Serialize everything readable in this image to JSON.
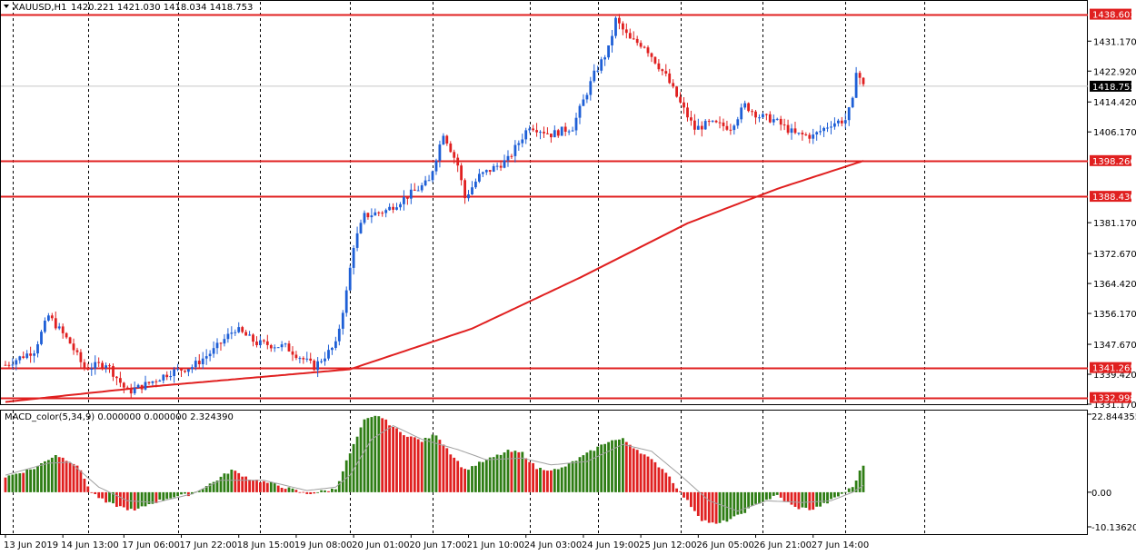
{
  "window": {
    "symbol_label": "XAUUSD,H1",
    "ohlc_label": "1420.221 1421.030 1418.034 1418.753"
  },
  "colors": {
    "bull": "#1e5fd6",
    "bear": "#e02020",
    "level": "#e02020",
    "ma": "#e02020",
    "hist_pos": "#2e7d14",
    "hist_neg": "#e02020",
    "signal": "#a0a0a0",
    "grid": "#000000",
    "badge_bg": "#e02020",
    "current_badge_bg": "#000000"
  },
  "chart_data": [
    {
      "type": "candlestick",
      "title": "XAUUSD,H1",
      "bars": 240,
      "ylim": [
        1331.17,
        1442.0
      ],
      "y_ticks": [
        "1431.170",
        "1422.920",
        "1414.420",
        "1406.170",
        "1381.170",
        "1372.670",
        "1364.420",
        "1356.170",
        "1347.670",
        "1339.420",
        "1331.170"
      ],
      "x_tick_labels": [
        "13 Jun 2019",
        "14 Jun 13:00",
        "17 Jun 06:00",
        "17 Jun 22:00",
        "18 Jun 15:00",
        "19 Jun 08:00",
        "20 Jun 01:00",
        "20 Jun 17:00",
        "21 Jun 10:00",
        "24 Jun 03:00",
        "24 Jun 19:00",
        "25 Jun 12:00",
        "26 Jun 05:00",
        "26 Jun 21:00",
        "27 Jun 14:00"
      ],
      "close_path": [
        [
          0,
          1342.0
        ],
        [
          8,
          1346.0
        ],
        [
          12,
          1355.5
        ],
        [
          18,
          1348.0
        ],
        [
          22,
          1341.0
        ],
        [
          28,
          1342.5
        ],
        [
          34,
          1334.5
        ],
        [
          40,
          1337.0
        ],
        [
          46,
          1340.0
        ],
        [
          52,
          1341.5
        ],
        [
          58,
          1346.0
        ],
        [
          64,
          1352.0
        ],
        [
          70,
          1348.0
        ],
        [
          78,
          1347.0
        ],
        [
          86,
          1341.5
        ],
        [
          92,
          1347.5
        ],
        [
          95,
          1362.0
        ],
        [
          97,
          1375.0
        ],
        [
          100,
          1383.0
        ],
        [
          106,
          1384.5
        ],
        [
          112,
          1388.5
        ],
        [
          118,
          1392.5
        ],
        [
          122,
          1406.0
        ],
        [
          126,
          1397.0
        ],
        [
          128,
          1388.0
        ],
        [
          132,
          1394.0
        ],
        [
          140,
          1398.5
        ],
        [
          146,
          1408.0
        ],
        [
          152,
          1405.5
        ],
        [
          158,
          1407.5
        ],
        [
          164,
          1422.0
        ],
        [
          168,
          1429.0
        ],
        [
          170,
          1437.0
        ],
        [
          174,
          1431.5
        ],
        [
          178,
          1430.0
        ],
        [
          184,
          1421.5
        ],
        [
          188,
          1414.0
        ],
        [
          192,
          1407.0
        ],
        [
          196,
          1408.5
        ],
        [
          202,
          1407.5
        ],
        [
          206,
          1413.5
        ],
        [
          210,
          1410.5
        ],
        [
          214,
          1409.5
        ],
        [
          220,
          1405.5
        ],
        [
          225,
          1405.0
        ],
        [
          230,
          1408.5
        ],
        [
          234,
          1409.5
        ],
        [
          236,
          1414.5
        ],
        [
          237,
          1423.5
        ],
        [
          239,
          1418.753
        ]
      ],
      "moving_average": [
        [
          0,
          1331.8
        ],
        [
          40,
          1336.0
        ],
        [
          96,
          1340.8
        ],
        [
          130,
          1352.0
        ],
        [
          160,
          1366.0
        ],
        [
          190,
          1381.0
        ],
        [
          215,
          1390.5
        ],
        [
          239,
          1398.2
        ]
      ],
      "current_price": "1418.753",
      "levels": [
        {
          "label": "1438.603",
          "value": 1438.603
        },
        {
          "label": "1398.266",
          "value": 1398.266
        },
        {
          "label": "1388.430",
          "value": 1388.43
        },
        {
          "label": "1341.265",
          "value": 1341.265
        },
        {
          "label": "1332.998",
          "value": 1332.998
        }
      ]
    },
    {
      "type": "bar",
      "title": "MACD_color(5,34,9) 0.000000 0.000000 2.324390",
      "ylim": [
        -10.136202,
        22.844355
      ],
      "y_ticks": [
        "22.844355",
        "0.00",
        "-10.136202"
      ],
      "histogram_path": [
        [
          0,
          4.5
        ],
        [
          8,
          7.0
        ],
        [
          14,
          11.0
        ],
        [
          20,
          8.0
        ],
        [
          24,
          0.0
        ],
        [
          28,
          -3.0
        ],
        [
          36,
          -5.5
        ],
        [
          40,
          -3.5
        ],
        [
          46,
          -1.5
        ],
        [
          52,
          -0.5
        ],
        [
          58,
          3.0
        ],
        [
          63,
          6.5
        ],
        [
          68,
          4.0
        ],
        [
          76,
          2.0
        ],
        [
          84,
          -0.5
        ],
        [
          92,
          1.0
        ],
        [
          95,
          9.0
        ],
        [
          100,
          21.0
        ],
        [
          104,
          22.5
        ],
        [
          110,
          17.5
        ],
        [
          116,
          15.0
        ],
        [
          120,
          17.0
        ],
        [
          124,
          11.5
        ],
        [
          128,
          6.5
        ],
        [
          132,
          8.5
        ],
        [
          140,
          12.0
        ],
        [
          144,
          11.5
        ],
        [
          148,
          7.0
        ],
        [
          154,
          6.5
        ],
        [
          160,
          10.0
        ],
        [
          168,
          15.0
        ],
        [
          172,
          15.5
        ],
        [
          178,
          11.0
        ],
        [
          184,
          6.0
        ],
        [
          188,
          0.0
        ],
        [
          194,
          -8.0
        ],
        [
          198,
          -9.5
        ],
        [
          204,
          -7.0
        ],
        [
          210,
          -3.0
        ],
        [
          215,
          -1.0
        ],
        [
          220,
          -4.5
        ],
        [
          225,
          -5.0
        ],
        [
          229,
          -3.0
        ],
        [
          233,
          -0.5
        ],
        [
          236,
          1.5
        ],
        [
          238,
          6.0
        ],
        [
          239,
          8.0
        ]
      ],
      "signal_path": [
        [
          0,
          5.0
        ],
        [
          12,
          8.5
        ],
        [
          18,
          8.8
        ],
        [
          26,
          1.5
        ],
        [
          34,
          -2.5
        ],
        [
          42,
          -3.0
        ],
        [
          52,
          -0.5
        ],
        [
          60,
          3.5
        ],
        [
          72,
          3.5
        ],
        [
          84,
          0.5
        ],
        [
          92,
          1.5
        ],
        [
          96,
          5.0
        ],
        [
          102,
          15.5
        ],
        [
          108,
          19.5
        ],
        [
          116,
          15.5
        ],
        [
          126,
          12.5
        ],
        [
          134,
          9.5
        ],
        [
          144,
          10.0
        ],
        [
          152,
          8.0
        ],
        [
          162,
          9.0
        ],
        [
          172,
          14.0
        ],
        [
          180,
          12.0
        ],
        [
          188,
          5.0
        ],
        [
          196,
          -2.5
        ],
        [
          204,
          -5.5
        ],
        [
          212,
          -2.5
        ],
        [
          222,
          -3.0
        ],
        [
          230,
          -2.5
        ],
        [
          236,
          0.0
        ],
        [
          239,
          2.0
        ]
      ]
    }
  ]
}
